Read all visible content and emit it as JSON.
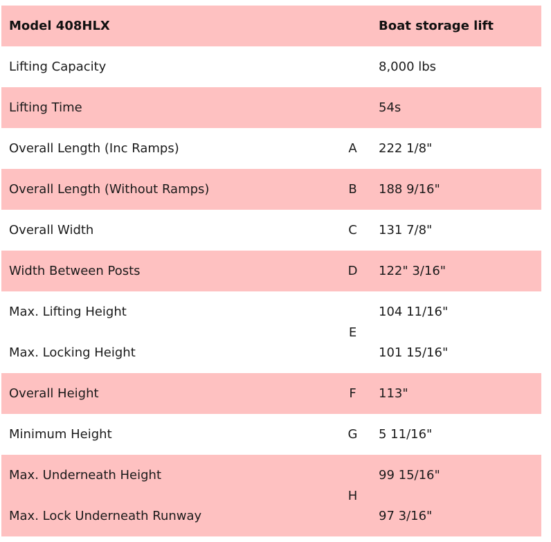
{
  "header": {
    "model": "Model 408HLX",
    "type": "Boat storage lift"
  },
  "rows": [
    {
      "label": "Lifting Capacity",
      "key": "",
      "value": "8,000 lbs"
    },
    {
      "label": "Lifting Time",
      "key": "",
      "value": "54s"
    },
    {
      "label": "Overall Length (Inc Ramps)",
      "key": "A",
      "value": "222 1/8\""
    },
    {
      "label": "Overall Length (Without Ramps)",
      "key": "B",
      "value": "188 9/16\""
    },
    {
      "label": "Overall Width",
      "key": "C",
      "value": "131 7/8\""
    },
    {
      "label": "Width Between Posts",
      "key": "D",
      "value": "122\" 3/16\""
    },
    {
      "label": "Max. Lifting Height",
      "key": "E",
      "value": "104 11/16\""
    },
    {
      "label": "Max. Locking Height",
      "key": "",
      "value": "101 15/16\""
    },
    {
      "label": "Overall Height",
      "key": "F",
      "value": "113\""
    },
    {
      "label": "Minimum Height",
      "key": "G",
      "value": "5 11/16\""
    },
    {
      "label": "Max. Underneath Height",
      "key": "H",
      "value": "99 15/16\""
    },
    {
      "label": "Max. Lock Underneath Runway",
      "key": "",
      "value": "97 3/16\""
    }
  ],
  "colors": {
    "stripe": "#fec1c1",
    "text": "#1a1a1a"
  }
}
